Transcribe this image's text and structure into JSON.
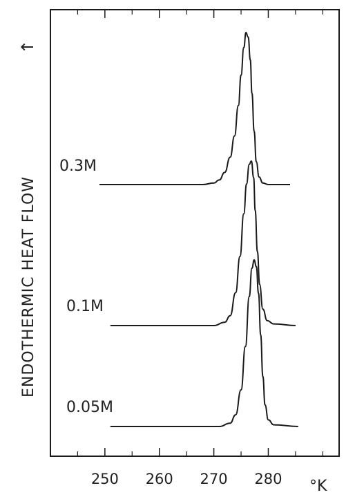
{
  "chart_data": {
    "type": "line",
    "title": "",
    "xlabel": "°K",
    "ylabel": "ENDOTHERMIC HEAT FLOW",
    "ylabel_arrow": "↑",
    "xlim": [
      240,
      293
    ],
    "x_ticks": [
      250,
      260,
      270,
      280
    ],
    "x_minor_ticks": [
      245,
      255,
      265,
      275,
      285,
      290
    ],
    "grid": false,
    "series": [
      {
        "name": "0.3M",
        "color": "#1a1a1a",
        "points": [
          [
            249,
            0
          ],
          [
            268,
            0
          ],
          [
            270,
            0.01
          ],
          [
            271,
            0.03
          ],
          [
            272,
            0.08
          ],
          [
            273,
            0.18
          ],
          [
            273.8,
            0.32
          ],
          [
            274.5,
            0.52
          ],
          [
            275,
            0.72
          ],
          [
            275.5,
            0.9
          ],
          [
            275.9,
            1.0
          ],
          [
            276.3,
            0.97
          ],
          [
            276.7,
            0.82
          ],
          [
            277,
            0.6
          ],
          [
            277.4,
            0.35
          ],
          [
            277.8,
            0.15
          ],
          [
            278.3,
            0.05
          ],
          [
            279,
            0.01
          ],
          [
            280,
            0
          ],
          [
            284,
            0
          ]
        ]
      },
      {
        "name": "0.1M",
        "color": "#1a1a1a",
        "points": [
          [
            251,
            0
          ],
          [
            270,
            0
          ],
          [
            272,
            0.02
          ],
          [
            273,
            0.06
          ],
          [
            274,
            0.2
          ],
          [
            274.8,
            0.42
          ],
          [
            275.5,
            0.68
          ],
          [
            276,
            0.86
          ],
          [
            276.5,
            0.98
          ],
          [
            276.9,
            1.0
          ],
          [
            277.3,
            0.9
          ],
          [
            277.6,
            0.7
          ],
          [
            278,
            0.45
          ],
          [
            278.4,
            0.25
          ],
          [
            279,
            0.1
          ],
          [
            279.8,
            0.03
          ],
          [
            281,
            0.01
          ],
          [
            285,
            0
          ]
        ]
      },
      {
        "name": "0.05M",
        "color": "#1a1a1a",
        "points": [
          [
            251,
            0
          ],
          [
            271,
            0
          ],
          [
            273,
            0.02
          ],
          [
            274,
            0.07
          ],
          [
            275,
            0.22
          ],
          [
            275.8,
            0.48
          ],
          [
            276.5,
            0.78
          ],
          [
            277,
            0.95
          ],
          [
            277.4,
            1.0
          ],
          [
            277.8,
            0.96
          ],
          [
            278.2,
            0.8
          ],
          [
            278.6,
            0.55
          ],
          [
            279,
            0.3
          ],
          [
            279.4,
            0.13
          ],
          [
            280,
            0.04
          ],
          [
            281,
            0.01
          ],
          [
            285.5,
            0
          ]
        ]
      }
    ]
  }
}
